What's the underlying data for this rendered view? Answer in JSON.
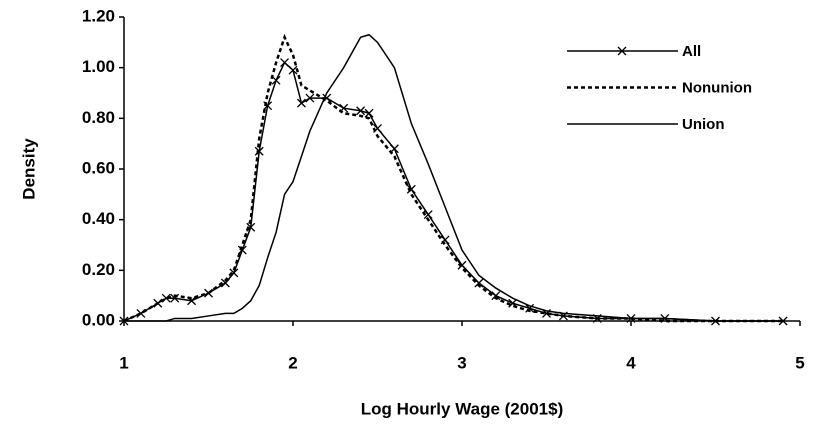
{
  "chart_data": {
    "type": "line",
    "xlabel": "Log Hourly Wage (2001$)",
    "ylabel": "Density",
    "x": [
      1.0,
      1.1,
      1.2,
      1.25,
      1.3,
      1.4,
      1.5,
      1.6,
      1.65,
      1.7,
      1.75,
      1.8,
      1.85,
      1.9,
      1.95,
      2.0,
      2.05,
      2.1,
      2.2,
      2.3,
      2.4,
      2.45,
      2.5,
      2.6,
      2.7,
      2.8,
      2.9,
      3.0,
      3.1,
      3.2,
      3.3,
      3.4,
      3.5,
      3.6,
      3.8,
      4.0,
      4.2,
      4.5,
      4.9
    ],
    "series": [
      {
        "name": "All",
        "color": "#000000",
        "line_style": "solid",
        "marker": "x",
        "values": [
          0.0,
          0.03,
          0.07,
          0.09,
          0.09,
          0.08,
          0.11,
          0.15,
          0.19,
          0.28,
          0.37,
          0.67,
          0.85,
          0.95,
          1.02,
          0.99,
          0.86,
          0.88,
          0.88,
          0.84,
          0.83,
          0.82,
          0.76,
          0.68,
          0.52,
          0.42,
          0.32,
          0.22,
          0.15,
          0.1,
          0.07,
          0.05,
          0.03,
          0.02,
          0.01,
          0.01,
          0.01,
          0.0,
          0.0
        ]
      },
      {
        "name": "Nonunion",
        "color": "#000000",
        "line_style": "dotted",
        "values": [
          0.0,
          0.03,
          0.07,
          0.09,
          0.1,
          0.09,
          0.11,
          0.16,
          0.2,
          0.3,
          0.4,
          0.72,
          0.9,
          1.02,
          1.12,
          1.05,
          0.93,
          0.91,
          0.87,
          0.82,
          0.81,
          0.8,
          0.73,
          0.65,
          0.5,
          0.4,
          0.3,
          0.21,
          0.14,
          0.09,
          0.06,
          0.04,
          0.03,
          0.02,
          0.01,
          0.01,
          0.0,
          0.0,
          0.0
        ]
      },
      {
        "name": "Union",
        "color": "#000000",
        "line_style": "solid",
        "values": [
          0.0,
          0.0,
          0.0,
          0.0,
          0.01,
          0.01,
          0.02,
          0.03,
          0.03,
          0.05,
          0.08,
          0.14,
          0.25,
          0.35,
          0.5,
          0.55,
          0.65,
          0.75,
          0.9,
          1.0,
          1.12,
          1.13,
          1.1,
          1.0,
          0.78,
          0.62,
          0.45,
          0.28,
          0.18,
          0.13,
          0.09,
          0.06,
          0.04,
          0.03,
          0.02,
          0.01,
          0.01,
          0.0,
          0.0
        ]
      }
    ],
    "xlim": [
      1,
      5
    ],
    "xticks": [
      1,
      2,
      3,
      4,
      5
    ],
    "ylim": [
      0,
      1.2
    ],
    "yticks": [
      {
        "value": 0,
        "label": "0.00"
      },
      {
        "value": 0.2,
        "label": "0.20"
      },
      {
        "value": 0.4,
        "label": "0.40"
      },
      {
        "value": 0.6,
        "label": "0.60"
      },
      {
        "value": 0.8,
        "label": "0.80"
      },
      {
        "value": 1.0,
        "label": "1.00"
      },
      {
        "value": 1.2,
        "label": "1.20"
      }
    ],
    "grid": false,
    "legend": "upper right"
  }
}
